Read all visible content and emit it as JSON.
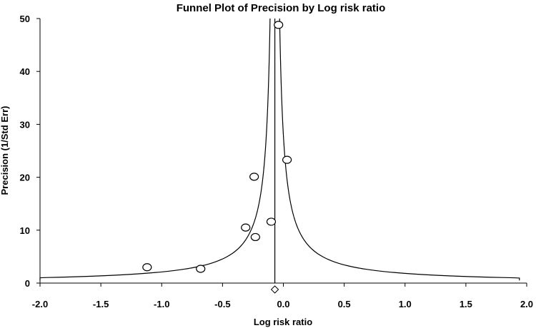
{
  "chart_data": {
    "type": "scatter",
    "title": "Funnel Plot of Precision by Log risk ratio",
    "xlabel": "Log risk ratio",
    "ylabel": "Precision (1/Std Err)",
    "xlim": [
      -2.0,
      2.0
    ],
    "ylim": [
      0,
      50
    ],
    "x_ticks": [
      "-2.0",
      "-1.5",
      "-1.0",
      "-0.5",
      "0.0",
      "0.5",
      "1.0",
      "1.5",
      "2.0"
    ],
    "y_ticks": [
      "0",
      "10",
      "20",
      "30",
      "40",
      "50"
    ],
    "pooled_estimate": -0.07,
    "funnel_z": 1.96,
    "points": [
      {
        "x": -0.04,
        "y": 48.8
      },
      {
        "x": 0.03,
        "y": 23.3
      },
      {
        "x": -0.24,
        "y": 20.1
      },
      {
        "x": -0.1,
        "y": 11.6
      },
      {
        "x": -0.31,
        "y": 10.5
      },
      {
        "x": -0.23,
        "y": 8.7
      },
      {
        "x": -1.12,
        "y": 3.0
      },
      {
        "x": -0.68,
        "y": 2.7
      }
    ],
    "grid": false,
    "legend": "none"
  }
}
